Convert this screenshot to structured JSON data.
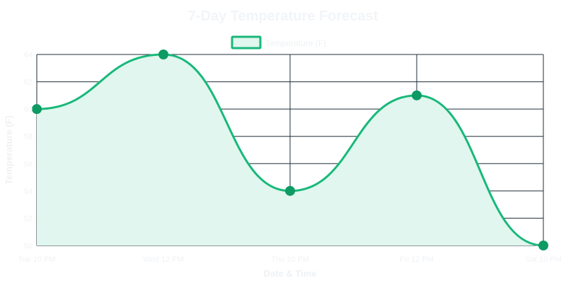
{
  "chart_data": {
    "type": "area",
    "title": "7-Day Temperature Forecast",
    "xlabel": "Date & Time",
    "ylabel": "Temperature (F)",
    "legend": {
      "label": "Temperature (F)",
      "position": "top-center"
    },
    "categories": [
      "Tue 10 PM",
      "Wed 12 PM",
      "Thu 10 PM",
      "Fri 12 PM",
      "Sat 10 PM"
    ],
    "series": [
      {
        "name": "Temperature (F)",
        "values": [
          60,
          64,
          54,
          61,
          50
        ]
      }
    ],
    "y_ticks": [
      50,
      52,
      54,
      56,
      58,
      60,
      62,
      64
    ],
    "ylim": [
      50,
      64
    ],
    "grid": true,
    "colors": {
      "line": "#18b87a",
      "fill": "#e0f6ee",
      "point": "#0e9a63",
      "grid": "#1f2f3a"
    }
  }
}
